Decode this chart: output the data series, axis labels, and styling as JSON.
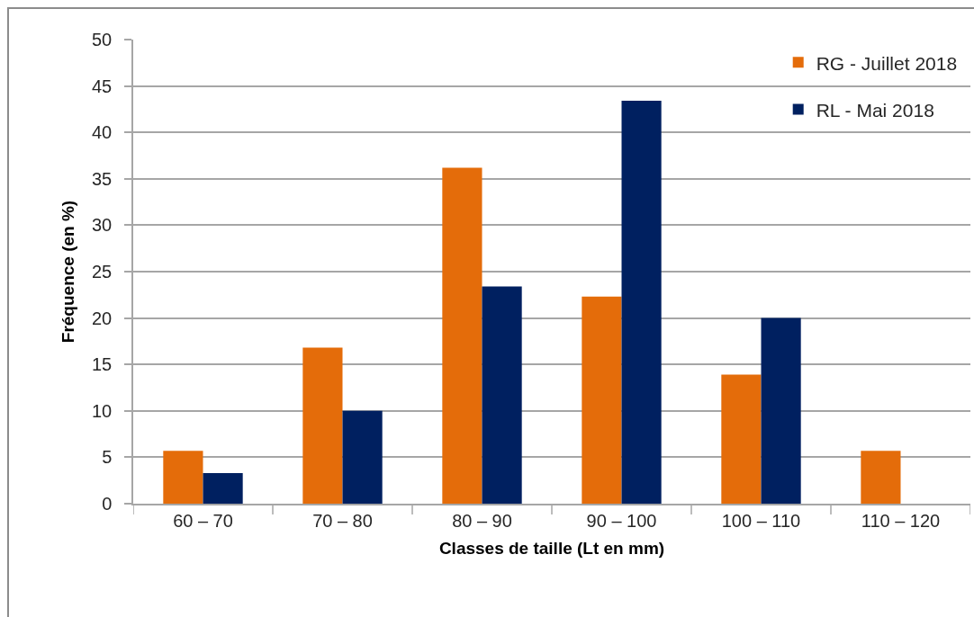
{
  "chart_data": {
    "type": "bar",
    "xlabel": "Classes de taille (Lt en mm)",
    "ylabel": "Fréquence (en %)",
    "categories": [
      "60 – 70",
      "70 – 80",
      "80 – 90",
      "90 – 100",
      "100 – 110",
      "110 – 120"
    ],
    "series": [
      {
        "name": "RG - Juillet 2018",
        "color": "#e46c0a",
        "values": [
          5.7,
          16.8,
          36.2,
          22.3,
          13.9,
          5.7
        ]
      },
      {
        "name": "RL - Mai 2018",
        "color": "#002060",
        "values": [
          3.3,
          10.0,
          23.4,
          43.4,
          20.0,
          null
        ]
      }
    ],
    "ylim": [
      0,
      50
    ],
    "yticks": [
      0,
      5,
      10,
      15,
      20,
      25,
      30,
      35,
      40,
      45,
      50
    ],
    "grid": "y",
    "legend": "top right"
  }
}
